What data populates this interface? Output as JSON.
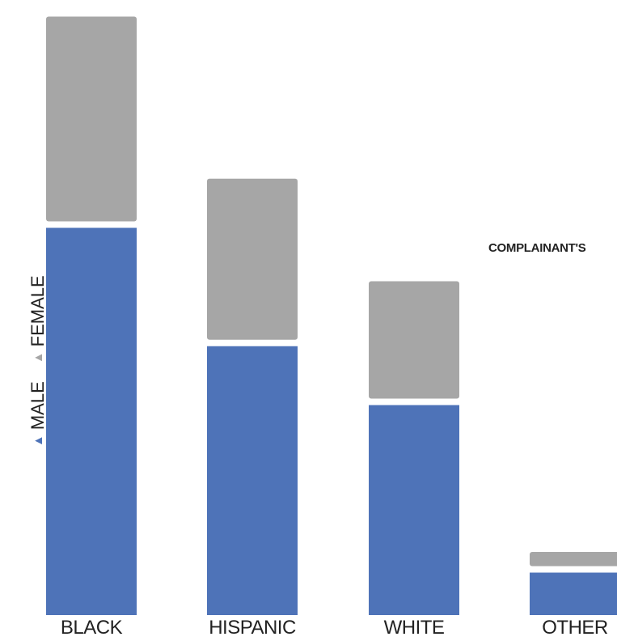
{
  "chart_data": {
    "type": "bar",
    "stacked": true,
    "categories": [
      "BLACK",
      "HISPANIC",
      "WHITE",
      "OTHER"
    ],
    "series": [
      {
        "name": "MALE",
        "color": "#4e73b8",
        "values": [
          63.8,
          44.3,
          34.6,
          7.0
        ]
      },
      {
        "name": "FEMALE",
        "color": "#a6a6a6",
        "values": [
          34.8,
          27.6,
          20.4,
          3.4
        ]
      }
    ],
    "ylim": [
      0,
      100
    ],
    "annotation": "COMPLAINANT'S",
    "legend_position": "left-vertical",
    "grid": false
  }
}
